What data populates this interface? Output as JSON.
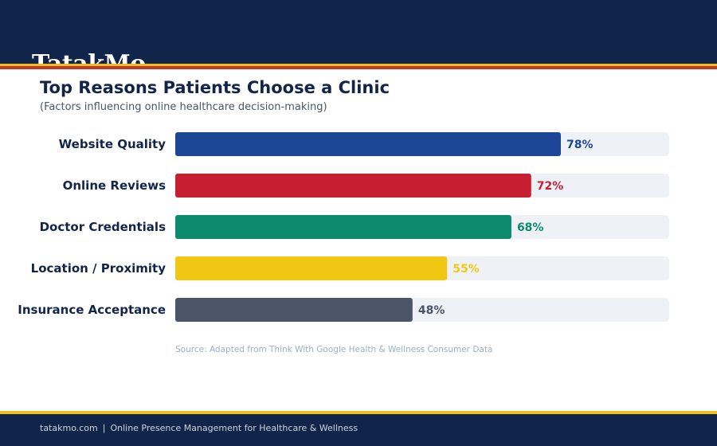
{
  "brand": {
    "logo_text": "TatakMo"
  },
  "chart_data": {
    "type": "bar",
    "orientation": "horizontal",
    "title": "Top Reasons Patients Choose a Clinic",
    "subtitle": "(Factors influencing online healthcare decision-making)",
    "categories": [
      "Website Quality",
      "Online Reviews",
      "Doctor Credentials",
      "Location / Proximity",
      "Insurance Acceptance"
    ],
    "values": [
      78,
      72,
      68,
      55,
      48
    ],
    "value_labels": [
      "78%",
      "72%",
      "68%",
      "55%",
      "48%"
    ],
    "colors": [
      "#1e4696",
      "#c81e32",
      "#0e8a6e",
      "#f0c814",
      "#4a5568"
    ],
    "xlim": [
      0,
      100
    ],
    "grid": false,
    "source": "Source: Adapted from Think With Google Health & Wellness Consumer Data"
  },
  "footer": {
    "site": "tatakmo.com",
    "separator": "|",
    "tagline": "Online Presence Management for Healthcare & Wellness"
  }
}
